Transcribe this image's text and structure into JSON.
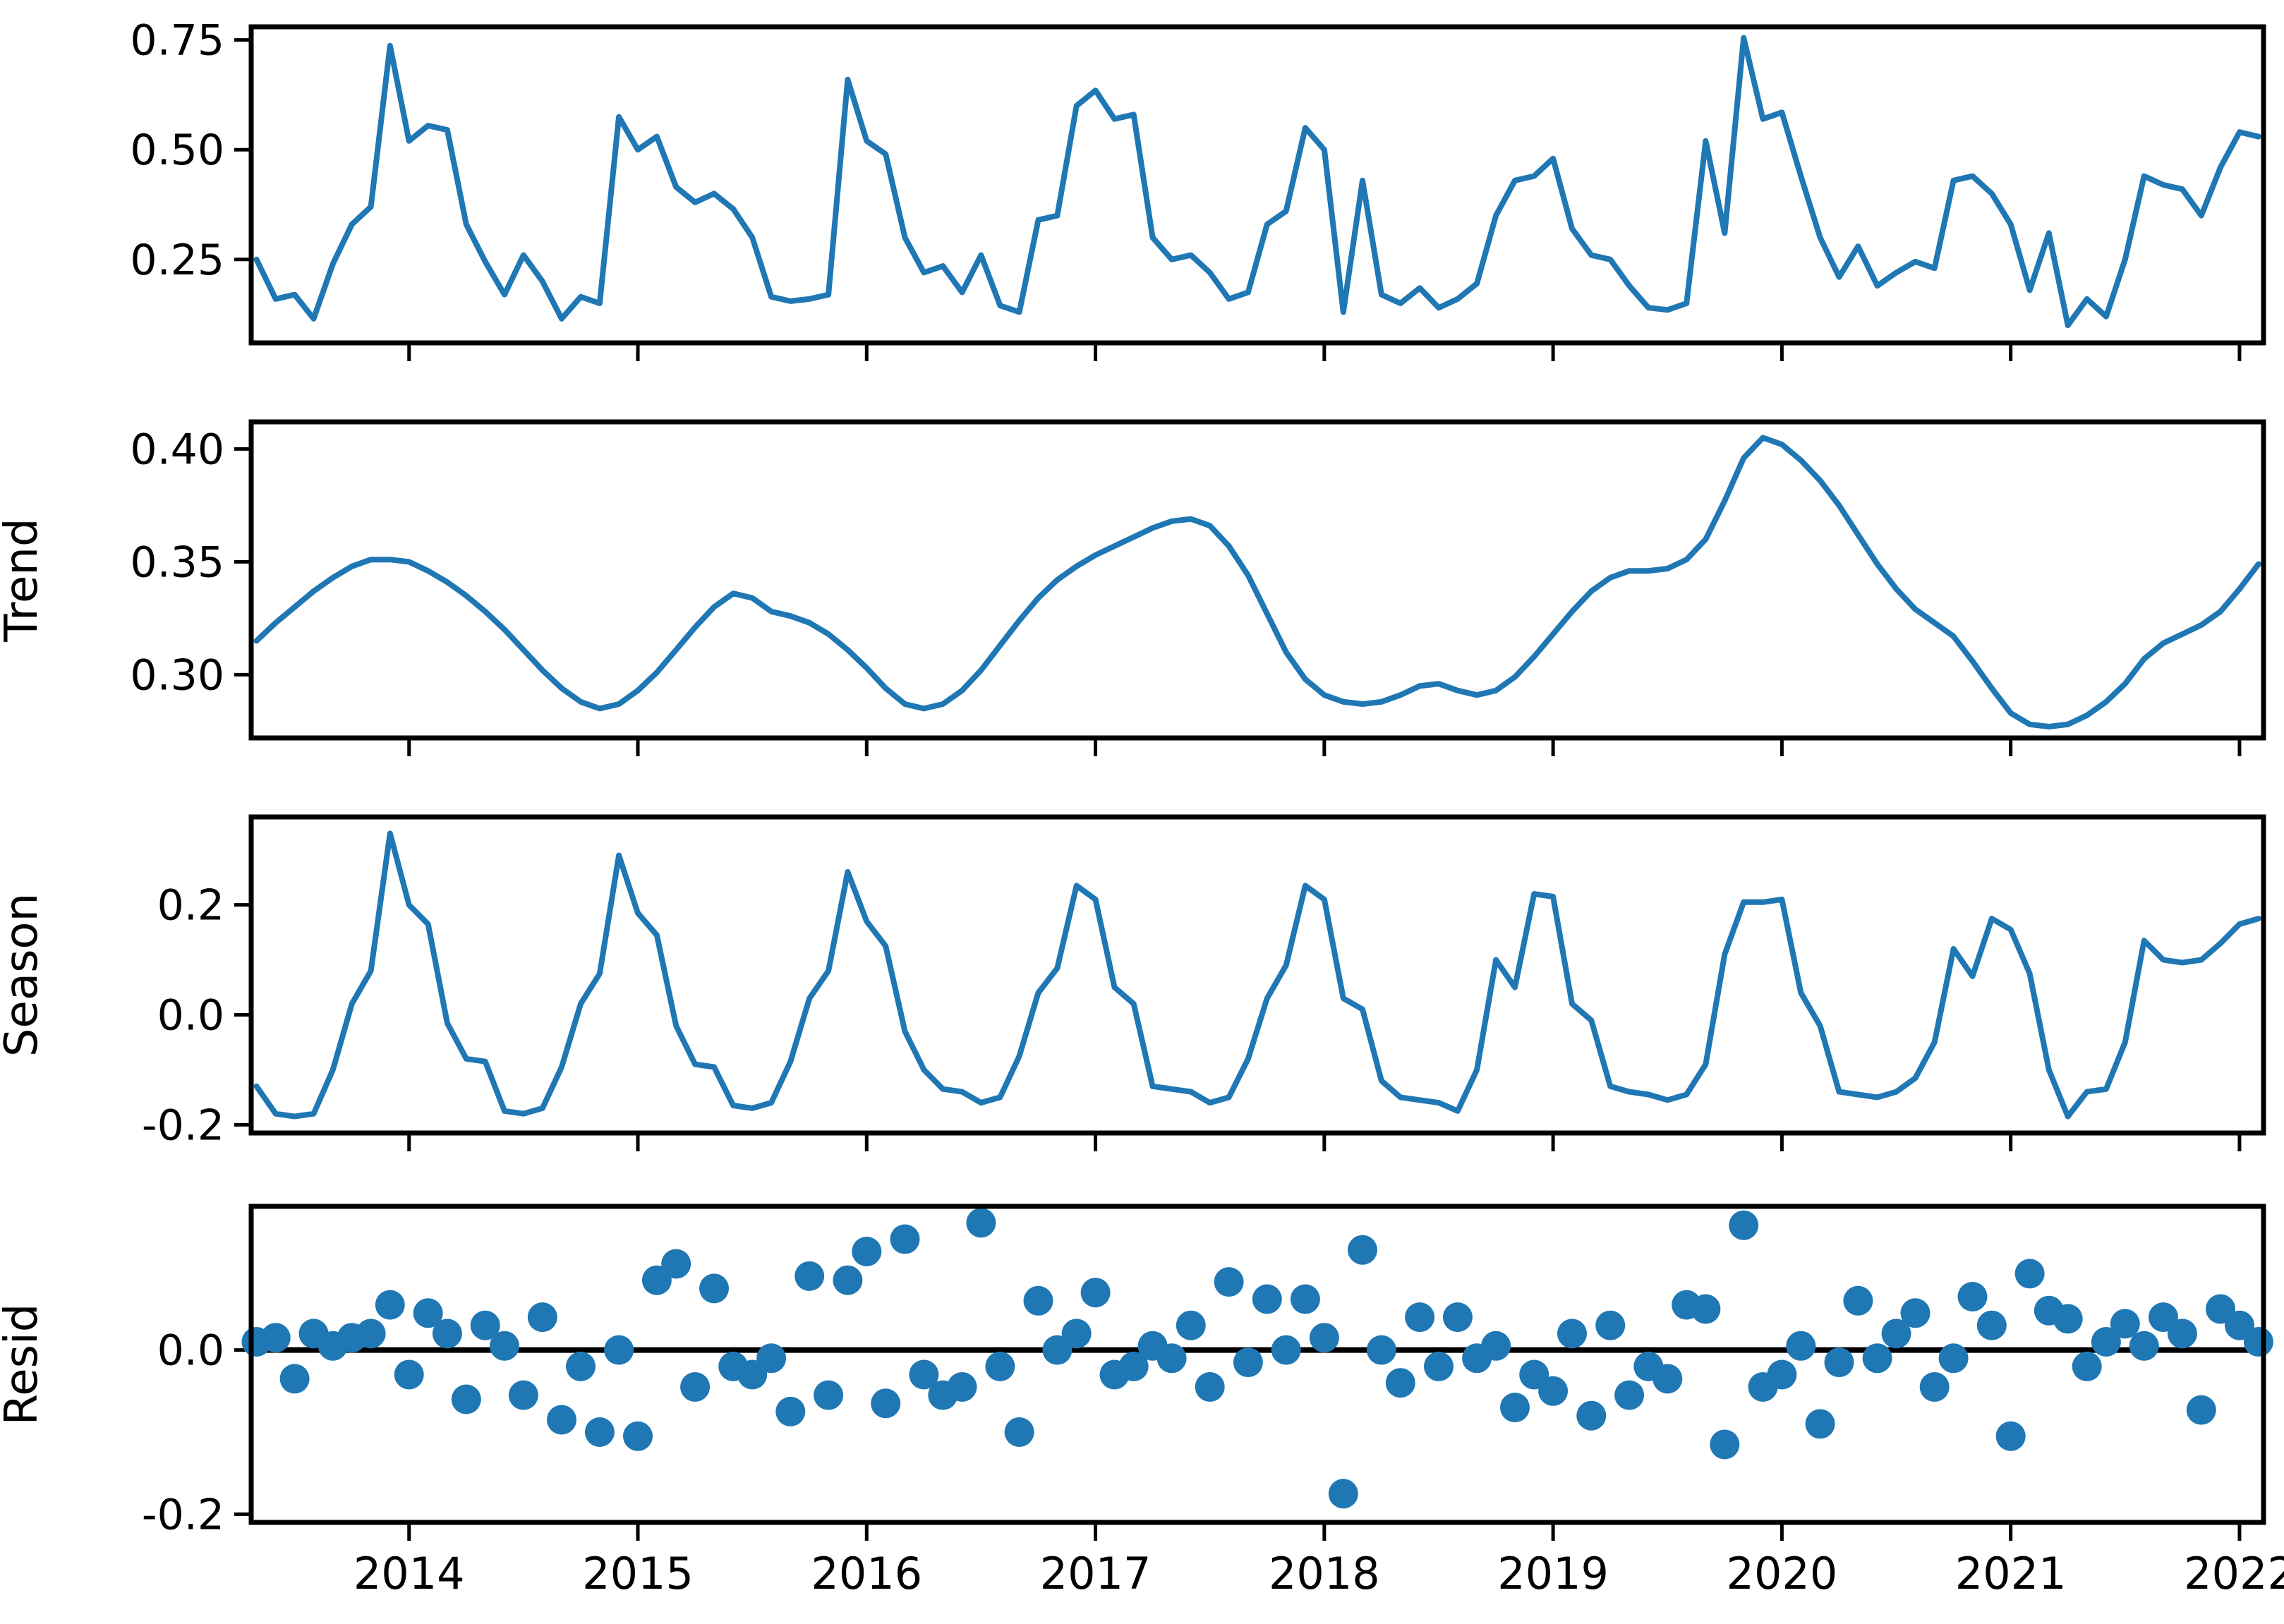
{
  "figure": {
    "background": "#ffffff",
    "axis_color": "#000000",
    "line_color": "#1f77b4",
    "marker_color": "#1f77b4",
    "zero_line_color": "#000000"
  },
  "xlim": [
    2013.31,
    2022.105
  ],
  "x_ticks": {
    "values": [
      2014,
      2015,
      2016,
      2017,
      2018,
      2019,
      2020,
      2021,
      2022
    ],
    "labels": [
      "2014",
      "2015",
      "2016",
      "2017",
      "2018",
      "2019",
      "2020",
      "2021",
      "2022"
    ]
  },
  "x_months": [
    2013.333,
    2013.417,
    2013.5,
    2013.583,
    2013.667,
    2013.75,
    2013.833,
    2013.917,
    2014.0,
    2014.083,
    2014.167,
    2014.25,
    2014.333,
    2014.417,
    2014.5,
    2014.583,
    2014.667,
    2014.75,
    2014.833,
    2014.917,
    2015.0,
    2015.083,
    2015.167,
    2015.25,
    2015.333,
    2015.417,
    2015.5,
    2015.583,
    2015.667,
    2015.75,
    2015.833,
    2015.917,
    2016.0,
    2016.083,
    2016.167,
    2016.25,
    2016.333,
    2016.417,
    2016.5,
    2016.583,
    2016.667,
    2016.75,
    2016.833,
    2016.917,
    2017.0,
    2017.083,
    2017.167,
    2017.25,
    2017.333,
    2017.417,
    2017.5,
    2017.583,
    2017.667,
    2017.75,
    2017.833,
    2017.917,
    2018.0,
    2018.083,
    2018.167,
    2018.25,
    2018.333,
    2018.417,
    2018.5,
    2018.583,
    2018.667,
    2018.75,
    2018.833,
    2018.917,
    2019.0,
    2019.083,
    2019.167,
    2019.25,
    2019.333,
    2019.417,
    2019.5,
    2019.583,
    2019.667,
    2019.75,
    2019.833,
    2019.917,
    2020.0,
    2020.083,
    2020.167,
    2020.25,
    2020.333,
    2020.417,
    2020.5,
    2020.583,
    2020.667,
    2020.75,
    2020.833,
    2020.917,
    2021.0,
    2021.083,
    2021.167,
    2021.25,
    2021.333,
    2021.417,
    2021.5,
    2021.583,
    2021.667,
    2021.75,
    2021.833,
    2021.917,
    2022.0,
    2022.083
  ],
  "chart_data": [
    {
      "type": "line",
      "name": "observed",
      "ylabel": "",
      "ylim": [
        0.06,
        0.78
      ],
      "y_ticks": {
        "values": [
          0.25,
          0.5,
          0.75
        ],
        "labels": [
          "0.25",
          "0.50",
          "0.75"
        ]
      },
      "values": [
        0.25,
        0.16,
        0.17,
        0.115,
        0.24,
        0.33,
        0.37,
        0.737,
        0.52,
        0.555,
        0.545,
        0.33,
        0.245,
        0.17,
        0.26,
        0.2,
        0.115,
        0.165,
        0.15,
        0.575,
        0.5,
        0.53,
        0.415,
        0.38,
        0.4,
        0.365,
        0.3,
        0.165,
        0.155,
        0.16,
        0.17,
        0.66,
        0.52,
        0.49,
        0.3,
        0.22,
        0.235,
        0.175,
        0.26,
        0.145,
        0.13,
        0.34,
        0.35,
        0.6,
        0.635,
        0.57,
        0.58,
        0.3,
        0.25,
        0.26,
        0.22,
        0.16,
        0.175,
        0.33,
        0.36,
        0.55,
        0.5,
        0.13,
        0.43,
        0.17,
        0.15,
        0.185,
        0.14,
        0.16,
        0.195,
        0.35,
        0.43,
        0.44,
        0.48,
        0.32,
        0.26,
        0.25,
        0.19,
        0.14,
        0.135,
        0.15,
        0.52,
        0.31,
        0.755,
        0.57,
        0.585,
        0.44,
        0.3,
        0.21,
        0.28,
        0.19,
        0.22,
        0.245,
        0.23,
        0.43,
        0.44,
        0.4,
        0.33,
        0.18,
        0.31,
        0.1,
        0.16,
        0.12,
        0.25,
        0.44,
        0.42,
        0.41,
        0.35,
        0.46,
        0.54,
        0.53
      ]
    },
    {
      "type": "line",
      "name": "trend",
      "ylabel": "Trend",
      "ylim": [
        0.272,
        0.412
      ],
      "y_ticks": {
        "values": [
          0.3,
          0.35,
          0.4
        ],
        "labels": [
          "0.30",
          "0.35",
          "0.40"
        ]
      },
      "values": [
        0.315,
        0.323,
        0.33,
        0.337,
        0.343,
        0.348,
        0.351,
        0.351,
        0.35,
        0.346,
        0.341,
        0.335,
        0.328,
        0.32,
        0.311,
        0.302,
        0.294,
        0.288,
        0.285,
        0.287,
        0.293,
        0.301,
        0.311,
        0.321,
        0.33,
        0.336,
        0.334,
        0.328,
        0.326,
        0.323,
        0.318,
        0.311,
        0.303,
        0.294,
        0.287,
        0.285,
        0.287,
        0.293,
        0.302,
        0.313,
        0.324,
        0.334,
        0.342,
        0.348,
        0.353,
        0.357,
        0.361,
        0.365,
        0.368,
        0.369,
        0.366,
        0.357,
        0.344,
        0.327,
        0.31,
        0.298,
        0.291,
        0.288,
        0.287,
        0.288,
        0.291,
        0.295,
        0.296,
        0.293,
        0.291,
        0.293,
        0.299,
        0.308,
        0.318,
        0.328,
        0.337,
        0.343,
        0.346,
        0.346,
        0.347,
        0.351,
        0.36,
        0.377,
        0.396,
        0.405,
        0.402,
        0.395,
        0.386,
        0.375,
        0.362,
        0.349,
        0.338,
        0.329,
        0.323,
        0.317,
        0.306,
        0.294,
        0.283,
        0.278,
        0.277,
        0.278,
        0.282,
        0.288,
        0.296,
        0.307,
        0.314,
        0.318,
        0.322,
        0.328,
        0.338,
        0.349
      ]
    },
    {
      "type": "line",
      "name": "season",
      "ylabel": "Season",
      "ylim": [
        -0.215,
        0.36
      ],
      "y_ticks": {
        "values": [
          -0.2,
          0.0,
          0.2
        ],
        "labels": [
          "-0.2",
          "0.0",
          "0.2"
        ]
      },
      "values": [
        -0.13,
        -0.18,
        -0.185,
        -0.18,
        -0.1,
        0.02,
        0.08,
        0.33,
        0.2,
        0.165,
        -0.015,
        -0.08,
        -0.085,
        -0.175,
        -0.18,
        -0.17,
        -0.095,
        0.02,
        0.075,
        0.29,
        0.185,
        0.145,
        -0.02,
        -0.09,
        -0.095,
        -0.165,
        -0.17,
        -0.16,
        -0.085,
        0.03,
        0.08,
        0.26,
        0.17,
        0.125,
        -0.03,
        -0.1,
        -0.135,
        -0.14,
        -0.16,
        -0.15,
        -0.075,
        0.04,
        0.085,
        0.235,
        0.21,
        0.05,
        0.02,
        -0.13,
        -0.135,
        -0.14,
        -0.16,
        -0.15,
        -0.08,
        0.03,
        0.09,
        0.235,
        0.21,
        0.03,
        0.01,
        -0.12,
        -0.15,
        -0.155,
        -0.16,
        -0.175,
        -0.1,
        0.1,
        0.05,
        0.22,
        0.215,
        0.02,
        -0.01,
        -0.13,
        -0.14,
        -0.145,
        -0.155,
        -0.145,
        -0.09,
        0.11,
        0.205,
        0.205,
        0.21,
        0.04,
        -0.02,
        -0.14,
        -0.145,
        -0.15,
        -0.14,
        -0.115,
        -0.05,
        0.12,
        0.07,
        0.175,
        0.155,
        0.075,
        -0.1,
        -0.185,
        -0.14,
        -0.135,
        -0.05,
        0.135,
        0.1,
        0.095,
        0.1,
        0.13,
        0.165,
        0.175
      ]
    },
    {
      "type": "scatter",
      "name": "resid",
      "ylabel": "Resid",
      "ylim": [
        -0.21,
        0.175
      ],
      "y_ticks": {
        "values": [
          -0.2,
          0.0
        ],
        "labels": [
          "-0.2",
          "0.0"
        ]
      },
      "zero_line": true,
      "values": [
        0.01,
        0.015,
        -0.035,
        0.02,
        0.005,
        0.015,
        0.02,
        0.055,
        -0.03,
        0.045,
        0.02,
        -0.06,
        0.03,
        0.005,
        -0.055,
        0.04,
        -0.085,
        -0.02,
        -0.1,
        0.0,
        -0.105,
        0.085,
        0.105,
        -0.045,
        0.075,
        -0.02,
        -0.03,
        -0.01,
        -0.075,
        0.09,
        -0.055,
        0.085,
        0.12,
        -0.065,
        0.135,
        -0.03,
        -0.055,
        -0.045,
        0.155,
        -0.02,
        -0.1,
        0.06,
        0.0,
        0.02,
        0.07,
        -0.03,
        -0.02,
        0.005,
        -0.01,
        0.03,
        -0.045,
        0.083,
        -0.015,
        0.062,
        0.0,
        0.062,
        0.015,
        -0.175,
        0.122,
        0.0,
        -0.04,
        0.04,
        -0.02,
        0.04,
        -0.01,
        0.005,
        -0.07,
        -0.03,
        -0.05,
        0.02,
        -0.08,
        0.03,
        -0.055,
        -0.02,
        -0.035,
        0.055,
        0.05,
        -0.115,
        0.152,
        -0.045,
        -0.03,
        0.005,
        -0.09,
        -0.015,
        0.06,
        -0.01,
        0.02,
        0.045,
        -0.045,
        -0.01,
        0.065,
        0.03,
        -0.105,
        0.093,
        0.048,
        0.038,
        -0.02,
        0.01,
        0.032,
        0.005,
        0.04,
        0.02,
        -0.073,
        0.05,
        0.03,
        0.01
      ]
    }
  ]
}
